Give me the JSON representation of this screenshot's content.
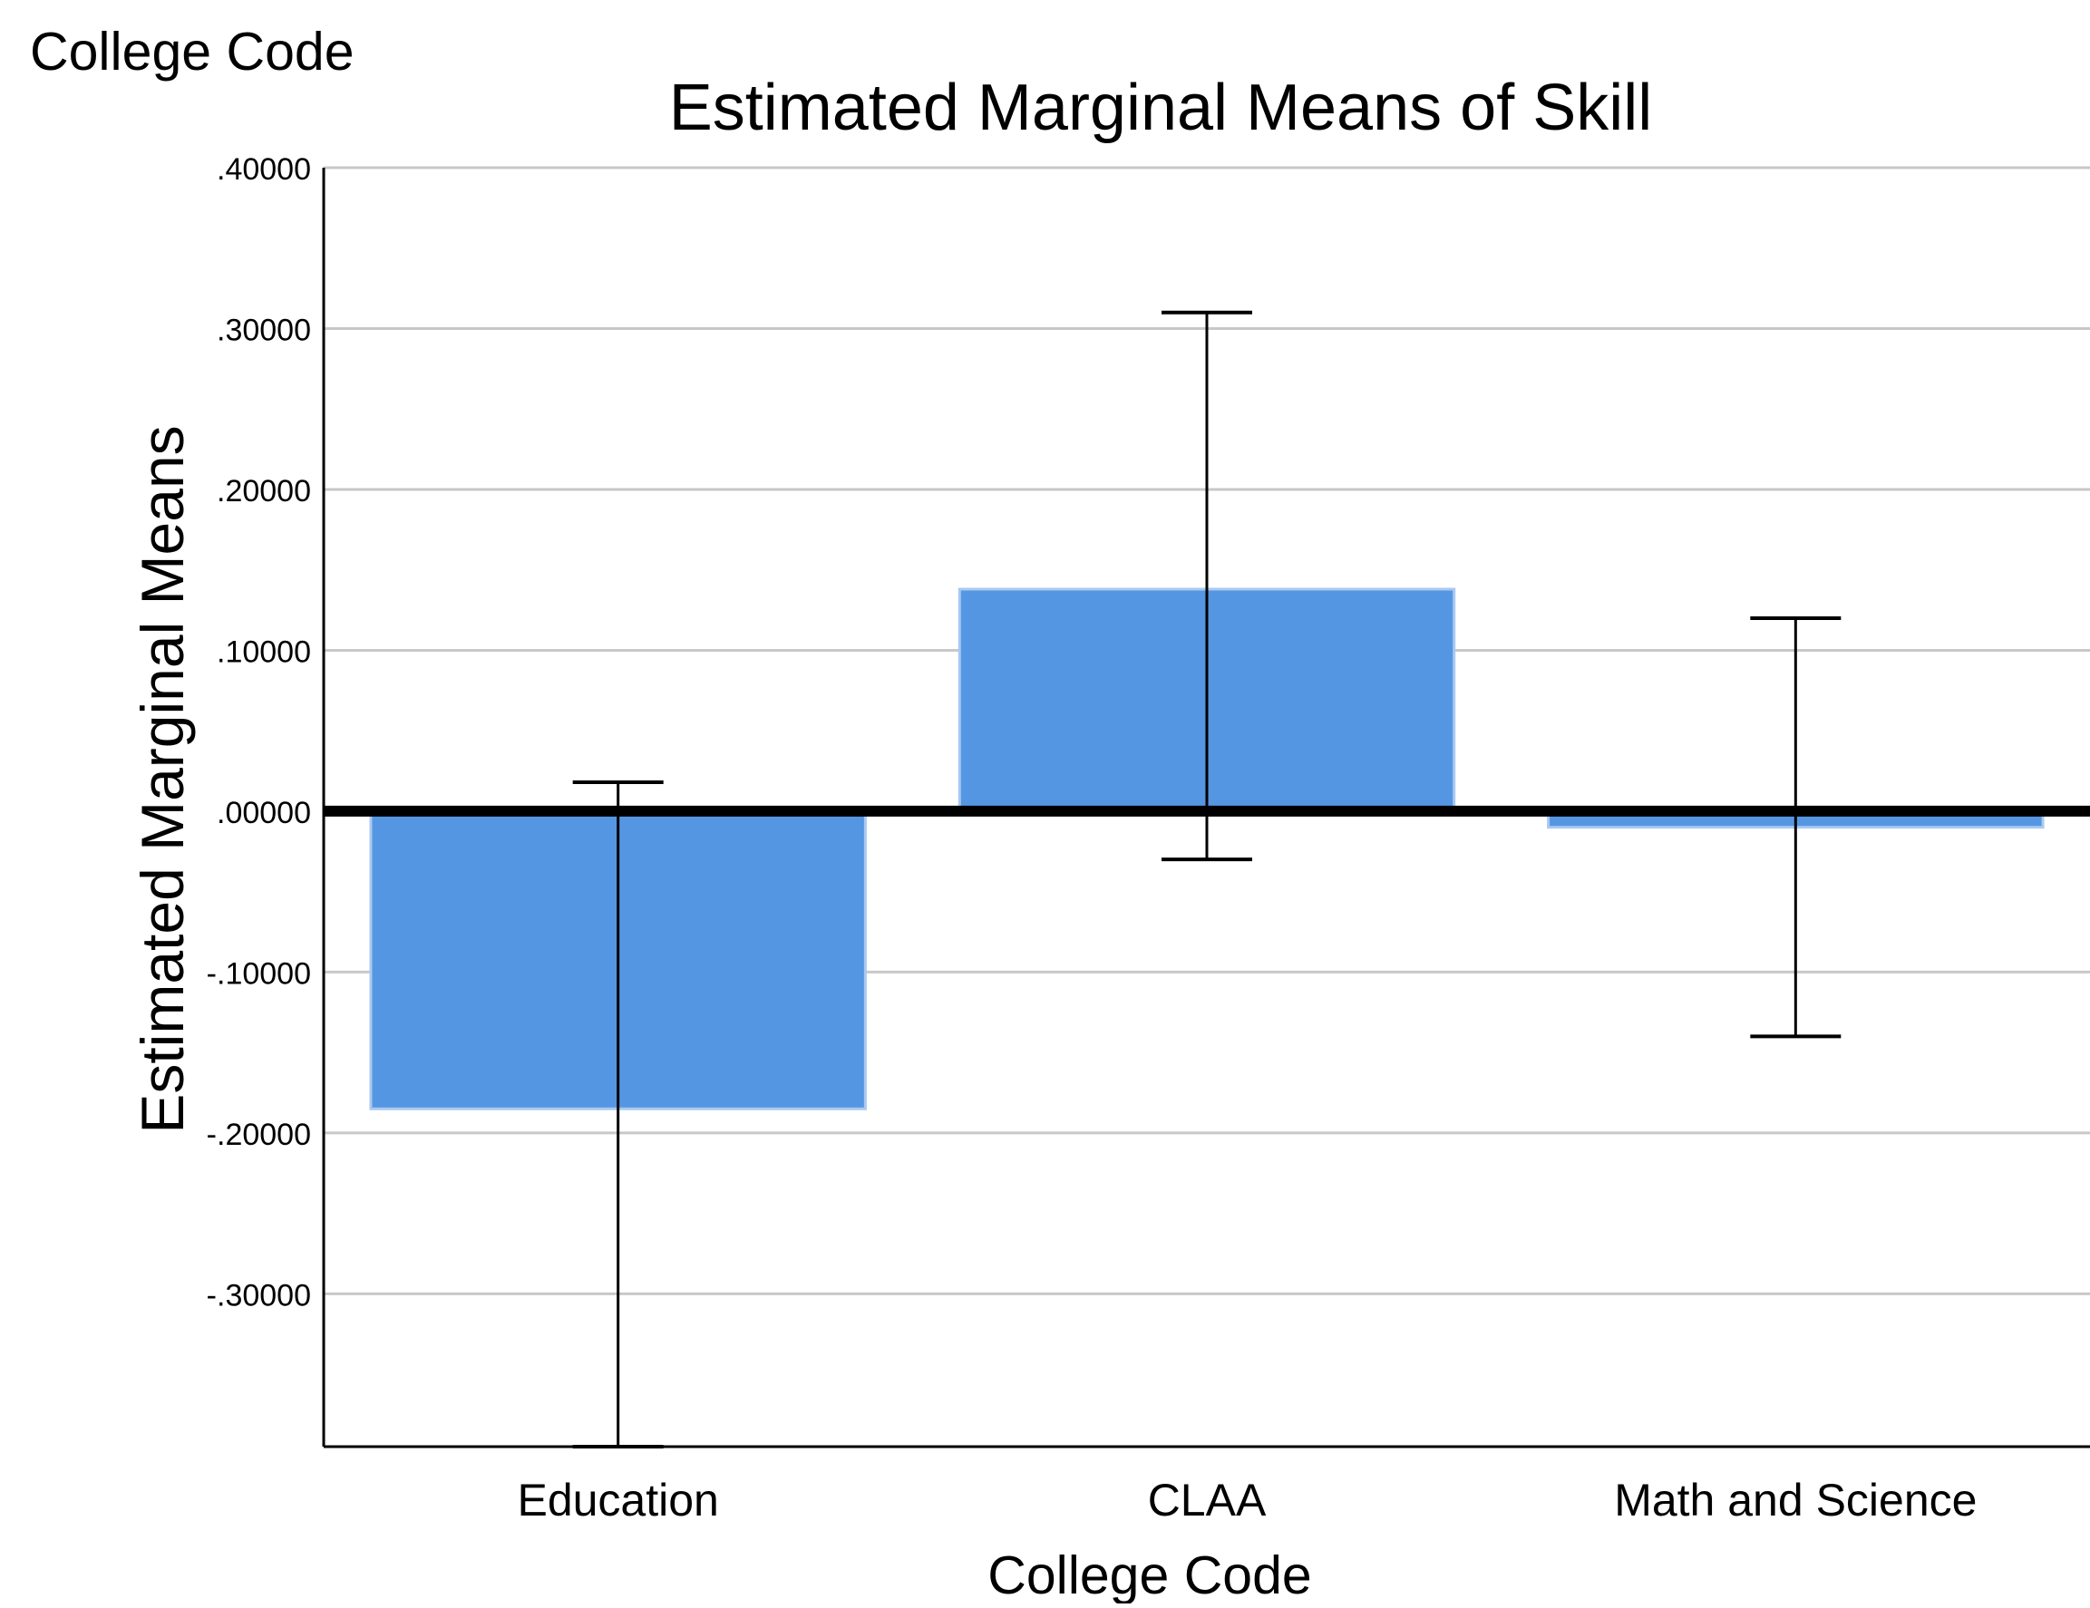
{
  "page_header": "College Code",
  "chart_data": {
    "type": "bar",
    "title": "Estimated Marginal Means of Skill",
    "xlabel": "College Code",
    "ylabel": "Estimated Marginal Means",
    "categories": [
      "Education",
      "CLAA",
      "Math and Science"
    ],
    "values": [
      -0.185,
      0.138,
      -0.01
    ],
    "error_bars": [
      {
        "lower": -0.395,
        "upper": 0.018
      },
      {
        "lower": -0.03,
        "upper": 0.31
      },
      {
        "lower": -0.14,
        "upper": 0.12
      }
    ],
    "ylim": [
      -0.395,
      0.4
    ],
    "yticks": [
      0.4,
      0.3,
      0.2,
      0.1,
      0.0,
      -0.1,
      -0.2,
      -0.3
    ],
    "ytick_labels": [
      ".40000",
      ".30000",
      ".20000",
      ".10000",
      ".00000",
      "-.10000",
      "-.20000",
      "-.30000"
    ],
    "reference_line": 0,
    "grid": true,
    "legend": false,
    "colors": {
      "bar": "#5596e3",
      "bar_edge": "#a9c9f0",
      "grid": "#c8c8c8",
      "axis": "#000000",
      "error_bar": "#000000",
      "text": "#000000"
    }
  }
}
